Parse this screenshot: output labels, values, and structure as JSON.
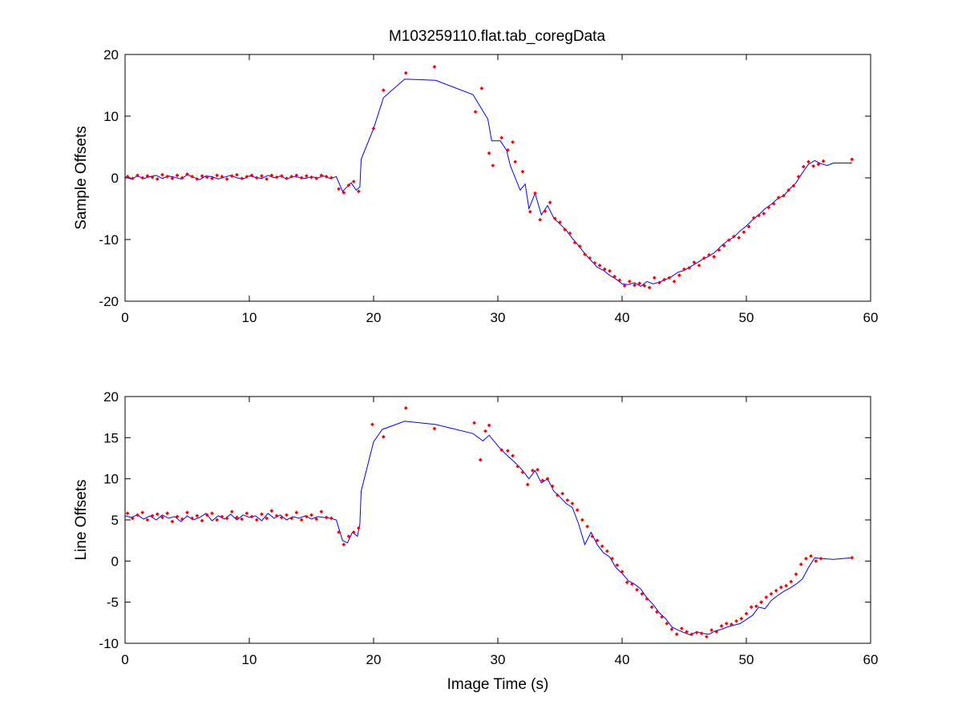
{
  "figure": {
    "title": "M103259110.flat.tab_coregData"
  },
  "chart_data": [
    {
      "type": "scatter",
      "title": "M103259110.flat.tab_coregData",
      "xlabel": "",
      "ylabel": "Sample Offsets",
      "xlim": [
        0,
        60
      ],
      "ylim": [
        -20,
        20
      ],
      "xticks": [
        0,
        10,
        20,
        30,
        40,
        50,
        60
      ],
      "yticks": [
        -20,
        -10,
        0,
        10,
        20
      ],
      "xtick_labels": [
        "0",
        "10",
        "20",
        "30",
        "40",
        "50",
        "60"
      ],
      "ytick_labels": [
        "-20",
        "-10",
        "0",
        "10",
        "20"
      ],
      "grid": false,
      "series": [
        {
          "kind": "line",
          "color": "#0000ff",
          "x": [
            0,
            0.5,
            1.0,
            1.5,
            2.0,
            2.5,
            3.0,
            3.5,
            4.0,
            4.5,
            5.0,
            5.5,
            6.0,
            6.5,
            7.0,
            7.5,
            8.0,
            8.5,
            9.0,
            9.5,
            10.0,
            10.5,
            11.0,
            11.5,
            12.0,
            12.5,
            13.0,
            13.5,
            14.0,
            14.5,
            15.0,
            15.5,
            16.0,
            16.5,
            17.0,
            17.5,
            17.8,
            18.2,
            18.6,
            18.9,
            19.0,
            20.0,
            20.8,
            22.5,
            25.0,
            28.0,
            29.2,
            29.5,
            30.2,
            30.7,
            31.0,
            31.4,
            31.8,
            32.2,
            32.5,
            33.0,
            33.5,
            34.0,
            34.5,
            35.0,
            35.5,
            36.0,
            36.5,
            37.0,
            37.5,
            38.0,
            38.5,
            39.0,
            39.5,
            40.0,
            40.5,
            41.0,
            41.5,
            42.0,
            42.5,
            43.0,
            43.5,
            44.0,
            44.5,
            45.0,
            45.5,
            46.0,
            46.5,
            47.0,
            47.5,
            48.0,
            48.5,
            49.0,
            49.5,
            50.0,
            50.5,
            51.0,
            51.5,
            52.0,
            52.5,
            53.0,
            53.5,
            54.0,
            54.5,
            55.0,
            55.5,
            56.0,
            56.5,
            57.0,
            58.5
          ],
          "y": [
            0.1,
            -0.2,
            0.3,
            -0.1,
            0.2,
            0.4,
            -0.1,
            0.3,
            0.1,
            -0.2,
            0.5,
            0.1,
            -0.3,
            0.3,
            0.2,
            -0.2,
            0.1,
            0.4,
            0.0,
            -0.2,
            0.3,
            0.1,
            -0.1,
            0.4,
            0.0,
            0.3,
            -0.2,
            0.2,
            0.1,
            -0.1,
            0.2,
            0.0,
            0.3,
            -0.1,
            0.2,
            -2.2,
            -1.6,
            -0.8,
            -2.0,
            -1.5,
            3.0,
            8.0,
            13.0,
            16.0,
            15.8,
            13.5,
            9.5,
            6.0,
            6.0,
            4.5,
            2.0,
            0.0,
            -2.0,
            -1.0,
            -5.0,
            -2.5,
            -6.0,
            -4.5,
            -6.5,
            -7.5,
            -8.5,
            -9.8,
            -11.0,
            -12.3,
            -13.4,
            -14.5,
            -15.0,
            -15.8,
            -16.4,
            -17.2,
            -17.3,
            -17.0,
            -17.6,
            -16.8,
            -17.2,
            -16.9,
            -16.5,
            -16.0,
            -15.3,
            -15.0,
            -14.4,
            -13.8,
            -13.2,
            -12.7,
            -12.0,
            -11.0,
            -10.2,
            -9.6,
            -8.6,
            -7.8,
            -6.8,
            -6.0,
            -5.0,
            -4.3,
            -3.4,
            -2.9,
            -1.8,
            -0.8,
            0.8,
            2.2,
            2.8,
            2.3,
            2.0,
            2.4,
            2.4
          ]
        },
        {
          "kind": "points",
          "color": "#ff0000",
          "x": [
            0.2,
            0.6,
            1.0,
            1.4,
            1.8,
            2.2,
            2.6,
            3.0,
            3.4,
            3.8,
            4.2,
            4.6,
            5.0,
            5.4,
            5.8,
            6.2,
            6.6,
            7.0,
            7.4,
            7.8,
            8.2,
            8.6,
            9.0,
            9.4,
            9.8,
            10.2,
            10.6,
            11.0,
            11.4,
            11.8,
            12.2,
            12.6,
            13.0,
            13.4,
            13.8,
            14.2,
            14.6,
            15.0,
            15.4,
            15.8,
            16.2,
            16.6,
            17.2,
            17.6,
            18.0,
            18.4,
            18.8,
            20.0,
            20.8,
            22.6,
            24.9,
            28.2,
            28.7,
            29.3,
            29.6,
            30.3,
            30.8,
            31.2,
            31.4,
            32.0,
            32.6,
            33.0,
            33.4,
            33.8,
            34.2,
            34.6,
            35.0,
            35.4,
            35.8,
            36.2,
            36.6,
            37.0,
            37.4,
            37.8,
            38.2,
            38.6,
            39.0,
            39.4,
            39.8,
            40.2,
            40.6,
            41.0,
            41.4,
            41.8,
            42.2,
            42.6,
            43.0,
            43.4,
            43.8,
            44.2,
            44.6,
            45.0,
            45.4,
            45.8,
            46.2,
            46.6,
            47.0,
            47.4,
            47.8,
            48.2,
            48.6,
            49.0,
            49.4,
            49.8,
            50.2,
            50.6,
            51.0,
            51.4,
            51.8,
            52.2,
            52.6,
            53.0,
            53.4,
            53.8,
            54.2,
            54.6,
            55.0,
            55.4,
            55.8,
            56.2,
            58.5
          ],
          "y": [
            0.2,
            -0.1,
            0.4,
            0.0,
            0.3,
            0.1,
            -0.2,
            0.5,
            0.2,
            -0.1,
            0.4,
            0.0,
            0.6,
            0.2,
            -0.2,
            0.3,
            0.1,
            -0.1,
            0.4,
            0.2,
            -0.2,
            0.3,
            0.5,
            -0.1,
            0.2,
            0.4,
            0.0,
            0.3,
            -0.2,
            0.4,
            0.1,
            0.3,
            -0.1,
            0.2,
            0.4,
            0.0,
            0.3,
            0.1,
            -0.1,
            0.4,
            0.2,
            0.0,
            -1.8,
            -2.4,
            -1.2,
            -0.6,
            -2.2,
            8.0,
            14.2,
            17.0,
            18.0,
            10.7,
            14.5,
            4.0,
            2.0,
            6.5,
            4.5,
            5.8,
            2.6,
            1.0,
            -5.5,
            -2.5,
            -6.8,
            -5.4,
            -4.0,
            -6.6,
            -7.2,
            -8.4,
            -9.0,
            -10.5,
            -11.1,
            -12.4,
            -13.0,
            -13.8,
            -14.2,
            -14.8,
            -15.1,
            -16.0,
            -16.6,
            -17.5,
            -16.8,
            -17.4,
            -17.1,
            -17.5,
            -17.8,
            -16.2,
            -17.0,
            -16.5,
            -16.2,
            -16.8,
            -15.8,
            -14.8,
            -14.6,
            -13.7,
            -14.2,
            -13.0,
            -12.5,
            -12.8,
            -11.7,
            -11.0,
            -10.1,
            -9.5,
            -9.7,
            -8.8,
            -7.9,
            -6.5,
            -6.1,
            -5.8,
            -4.8,
            -4.2,
            -3.2,
            -2.9,
            -2.0,
            -1.3,
            0.2,
            1.8,
            2.6,
            1.9,
            2.2,
            2.7,
            3.0
          ]
        }
      ]
    },
    {
      "type": "scatter",
      "title": "",
      "xlabel": "Image Time (s)",
      "ylabel": "Line Offsets",
      "xlim": [
        0,
        60
      ],
      "ylim": [
        -10,
        20
      ],
      "xticks": [
        0,
        10,
        20,
        30,
        40,
        50,
        60
      ],
      "yticks": [
        -10,
        -5,
        0,
        5,
        10,
        15,
        20
      ],
      "xtick_labels": [
        "0",
        "10",
        "20",
        "30",
        "40",
        "50",
        "60"
      ],
      "ytick_labels": [
        "-10",
        "-5",
        "0",
        "5",
        "10",
        "15",
        "20"
      ],
      "grid": false,
      "series": [
        {
          "kind": "line",
          "color": "#0000ff",
          "x": [
            0,
            0.5,
            1.0,
            1.5,
            2.0,
            2.5,
            3.0,
            3.5,
            4.0,
            4.5,
            5.0,
            5.5,
            6.0,
            6.5,
            7.0,
            7.5,
            8.0,
            8.5,
            9.0,
            9.5,
            10.0,
            10.5,
            11.0,
            11.5,
            12.0,
            12.5,
            13.0,
            13.5,
            14.0,
            14.5,
            15.0,
            15.5,
            16.0,
            16.5,
            17.0,
            17.5,
            17.9,
            18.3,
            18.7,
            18.9,
            19.0,
            20.0,
            20.7,
            22.5,
            25.0,
            28.0,
            28.8,
            29.3,
            30.0,
            30.5,
            31.0,
            31.5,
            32.0,
            32.5,
            33.0,
            33.5,
            34.0,
            34.5,
            35.0,
            35.5,
            36.0,
            36.5,
            37.0,
            37.5,
            38.0,
            38.5,
            39.0,
            39.5,
            40.0,
            40.5,
            41.0,
            41.5,
            42.0,
            42.5,
            43.0,
            43.5,
            44.0,
            44.5,
            45.0,
            45.5,
            46.0,
            46.5,
            47.0,
            47.5,
            48.0,
            48.5,
            49.0,
            49.5,
            50.0,
            50.5,
            51.0,
            51.5,
            52.0,
            52.5,
            53.0,
            53.5,
            54.0,
            54.5,
            55.0,
            55.5,
            56.0,
            57.0,
            58.5
          ],
          "y": [
            5.5,
            5.3,
            5.6,
            5.1,
            5.5,
            5.0,
            5.6,
            5.2,
            5.4,
            4.8,
            5.5,
            5.0,
            5.3,
            5.8,
            4.9,
            5.5,
            5.1,
            5.7,
            5.0,
            5.6,
            5.3,
            5.5,
            4.9,
            5.8,
            5.2,
            5.6,
            5.0,
            5.4,
            5.2,
            5.5,
            5.1,
            5.4,
            5.3,
            5.2,
            5.0,
            2.5,
            2.2,
            3.5,
            3.0,
            4.5,
            8.5,
            14.5,
            16.0,
            17.0,
            16.6,
            15.5,
            14.6,
            15.3,
            14.0,
            13.2,
            12.5,
            11.8,
            11.0,
            10.0,
            11.0,
            9.5,
            10.0,
            8.5,
            7.8,
            7.0,
            6.5,
            4.5,
            2.0,
            3.5,
            2.0,
            1.0,
            0.5,
            -0.8,
            -1.5,
            -2.4,
            -2.8,
            -3.4,
            -4.5,
            -5.3,
            -6.3,
            -7.0,
            -8.0,
            -8.4,
            -8.7,
            -9.0,
            -8.6,
            -8.8,
            -8.9,
            -8.5,
            -8.3,
            -8.0,
            -7.8,
            -7.6,
            -7.1,
            -6.6,
            -5.6,
            -5.8,
            -4.8,
            -4.2,
            -3.7,
            -3.3,
            -2.8,
            -2.2,
            -0.8,
            0.4,
            0.3,
            0.2,
            0.4
          ]
        },
        {
          "kind": "points",
          "color": "#ff0000",
          "x": [
            0.2,
            0.6,
            1.0,
            1.4,
            1.8,
            2.2,
            2.6,
            3.0,
            3.4,
            3.8,
            4.2,
            4.6,
            5.0,
            5.4,
            5.8,
            6.2,
            6.6,
            7.0,
            7.4,
            7.8,
            8.2,
            8.6,
            9.0,
            9.4,
            9.8,
            10.2,
            10.6,
            11.0,
            11.4,
            11.8,
            12.2,
            12.6,
            13.0,
            13.4,
            13.8,
            14.2,
            14.6,
            15.0,
            15.4,
            15.8,
            16.2,
            16.6,
            17.2,
            17.6,
            18.0,
            18.4,
            18.8,
            19.9,
            20.8,
            22.6,
            24.9,
            28.1,
            28.6,
            29.0,
            29.3,
            30.3,
            30.8,
            31.2,
            31.6,
            32.0,
            32.4,
            32.8,
            33.2,
            33.6,
            34.0,
            34.4,
            34.8,
            35.2,
            35.6,
            36.0,
            36.4,
            36.8,
            37.2,
            37.6,
            38.0,
            38.4,
            38.8,
            39.2,
            39.6,
            40.0,
            40.4,
            40.8,
            41.2,
            41.6,
            42.0,
            42.4,
            42.8,
            43.2,
            43.6,
            44.0,
            44.4,
            44.8,
            45.2,
            45.6,
            46.0,
            46.4,
            46.8,
            47.2,
            47.6,
            48.0,
            48.4,
            48.8,
            49.2,
            49.6,
            50.0,
            50.4,
            50.8,
            51.2,
            51.6,
            52.0,
            52.4,
            52.8,
            53.2,
            53.6,
            54.0,
            54.4,
            54.8,
            55.2,
            55.6,
            56.0,
            58.5
          ],
          "y": [
            5.8,
            5.2,
            5.6,
            5.9,
            5.0,
            5.5,
            5.7,
            5.3,
            5.8,
            4.8,
            5.4,
            5.1,
            5.9,
            5.2,
            5.5,
            4.9,
            5.6,
            5.8,
            5.0,
            5.4,
            5.2,
            6.0,
            5.3,
            5.1,
            5.8,
            5.4,
            5.0,
            5.7,
            5.2,
            6.1,
            5.5,
            5.3,
            5.6,
            5.2,
            5.9,
            5.0,
            5.4,
            5.6,
            5.1,
            6.0,
            5.3,
            5.2,
            3.5,
            2.0,
            3.0,
            3.5,
            4.0,
            16.6,
            15.1,
            18.6,
            16.1,
            16.8,
            12.3,
            15.8,
            16.5,
            13.5,
            13.4,
            12.8,
            11.5,
            10.8,
            9.3,
            11.0,
            11.1,
            9.8,
            10.0,
            9.1,
            8.0,
            8.2,
            7.4,
            7.0,
            6.2,
            5.0,
            4.2,
            3.0,
            2.5,
            1.8,
            1.2,
            0.3,
            -0.5,
            -1.3,
            -2.6,
            -2.8,
            -3.5,
            -4.0,
            -4.6,
            -5.6,
            -6.2,
            -6.8,
            -7.6,
            -8.3,
            -8.9,
            -8.2,
            -8.6,
            -8.9,
            -8.7,
            -8.8,
            -9.2,
            -8.4,
            -8.6,
            -7.9,
            -7.6,
            -7.7,
            -7.3,
            -7.0,
            -6.4,
            -5.6,
            -5.5,
            -5.0,
            -4.4,
            -4.0,
            -3.6,
            -3.2,
            -3.0,
            -2.5,
            -1.6,
            -0.4,
            0.3,
            0.6,
            0.0,
            0.3,
            0.4
          ]
        }
      ]
    }
  ]
}
